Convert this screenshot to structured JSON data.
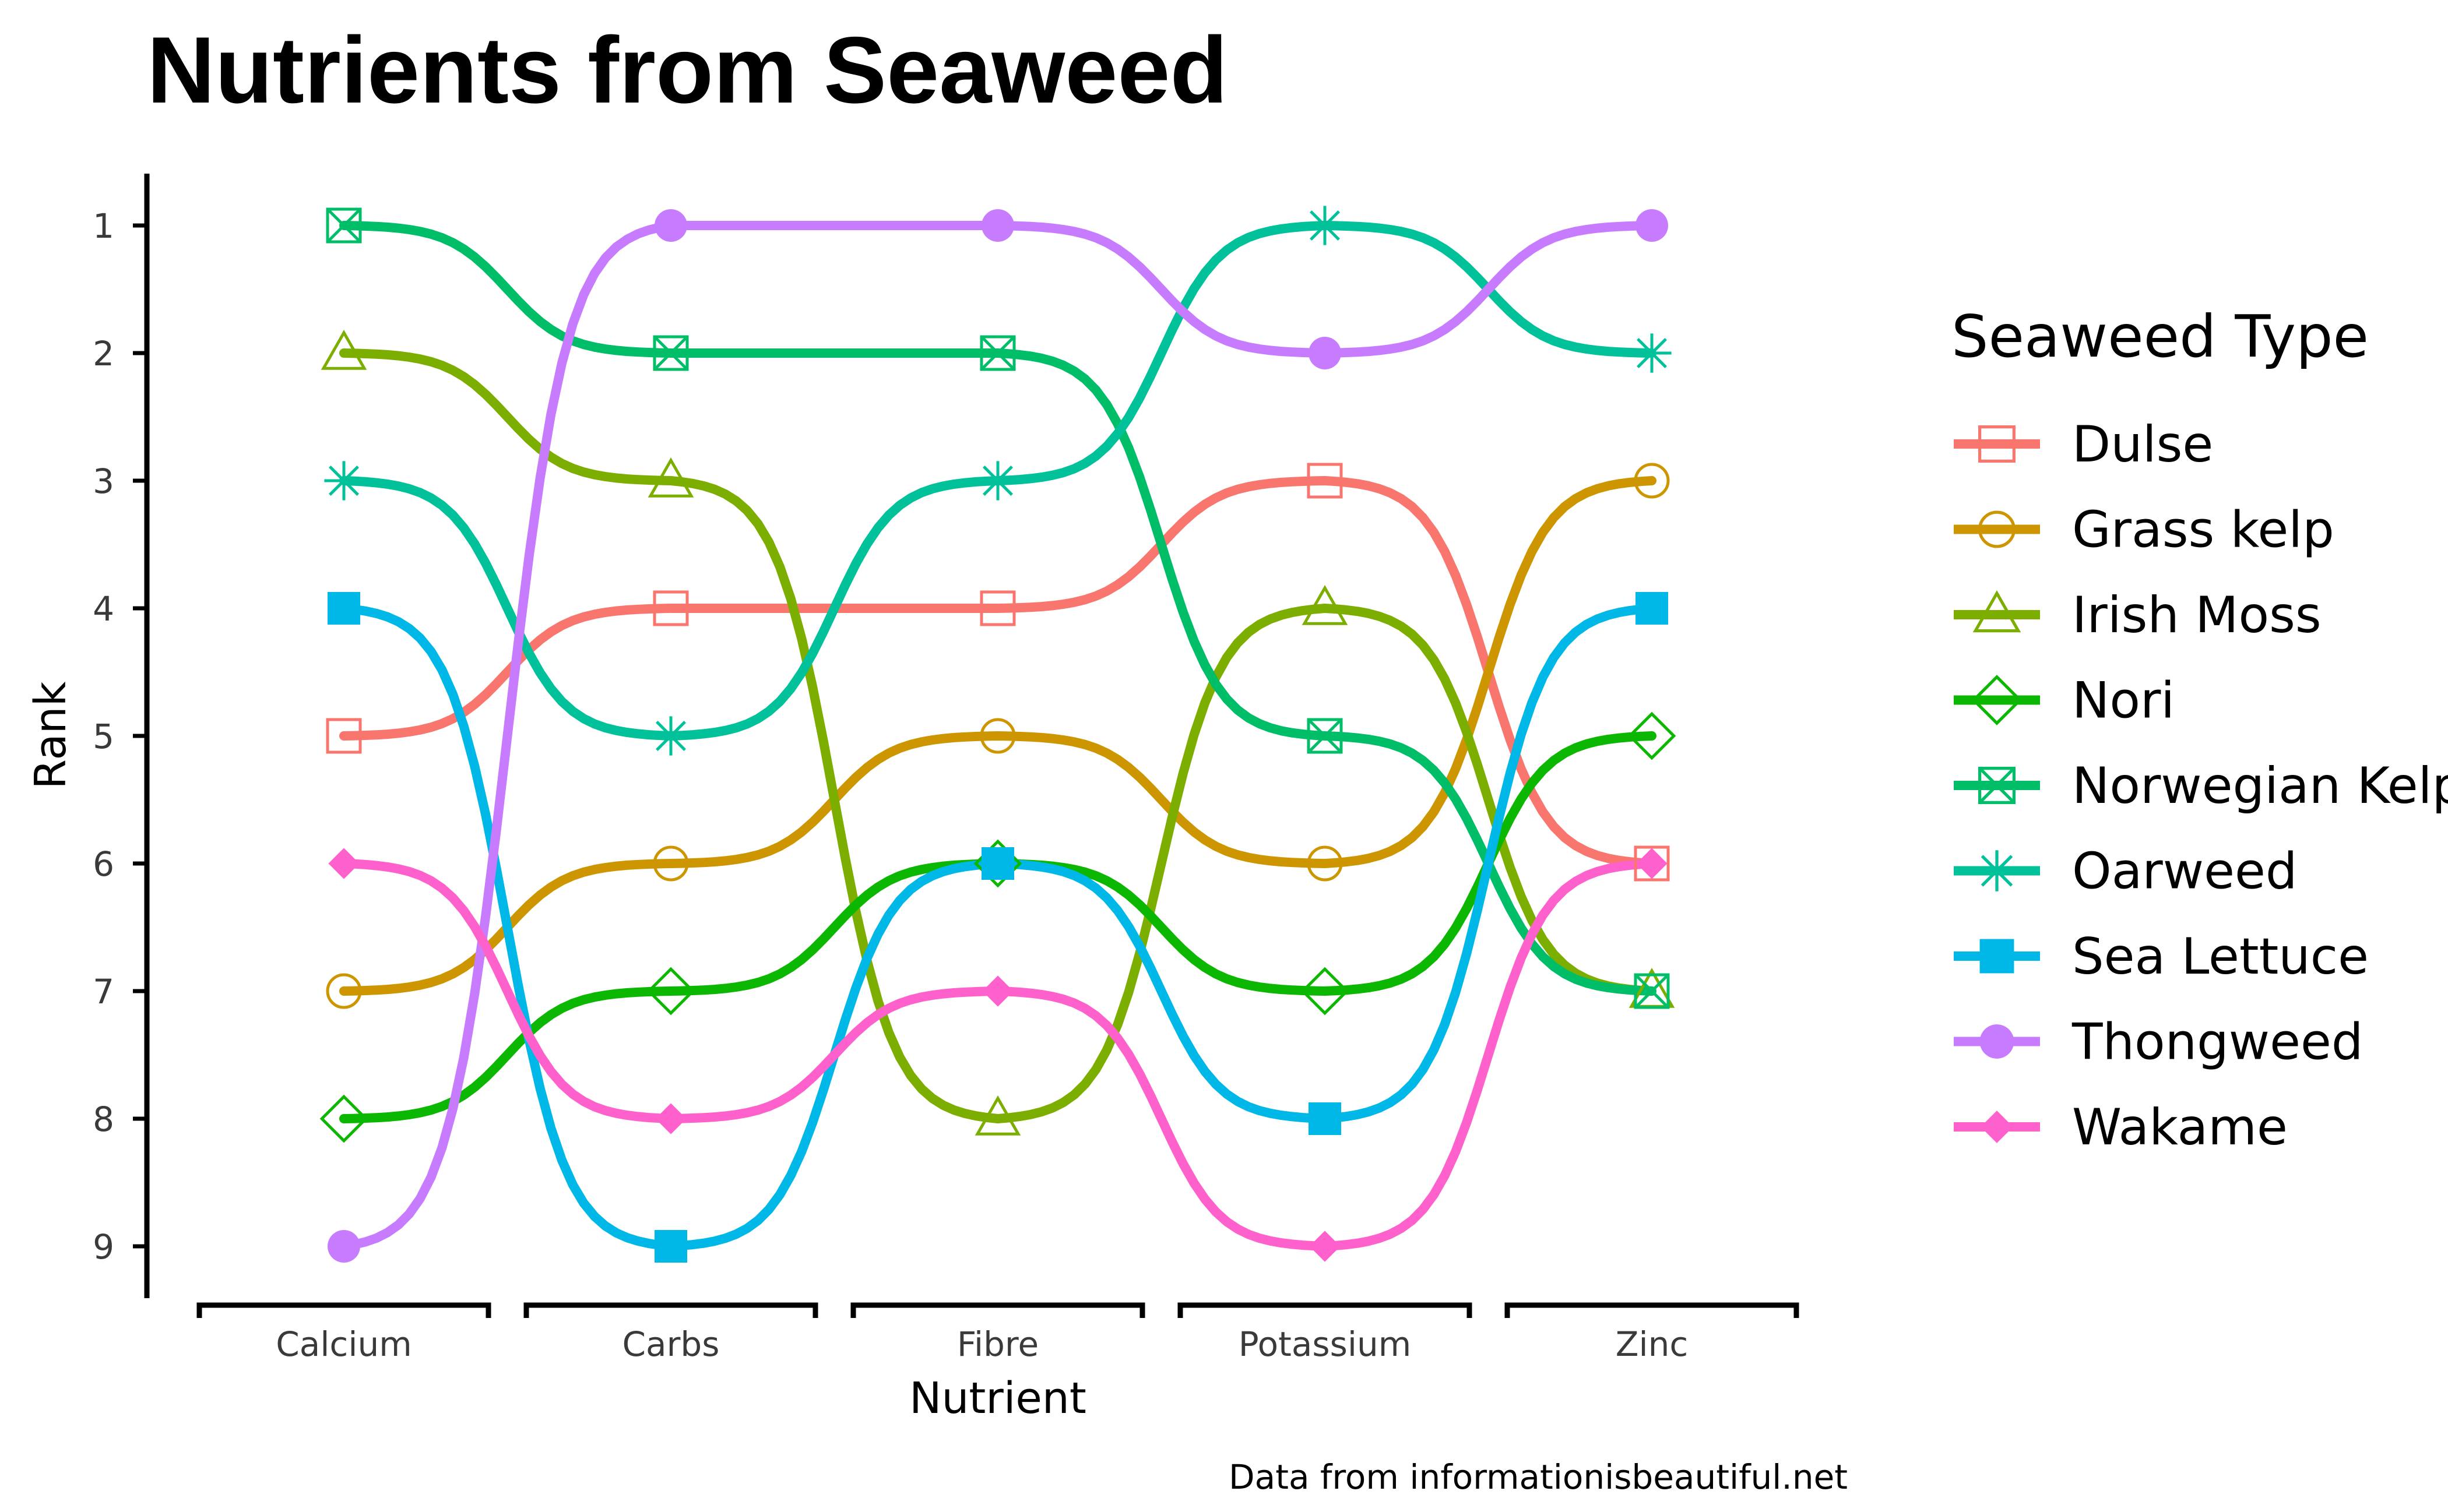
{
  "title": "Nutrients from Seaweed",
  "caption": "Data from informationisbeautiful.net",
  "chart_data": {
    "type": "line",
    "subtype": "bump chart (smoothed rank lines)",
    "xlabel": "Nutrient",
    "ylabel": "Rank",
    "categories": [
      "Calcium",
      "Carbs",
      "Fibre",
      "Potassium",
      "Zinc"
    ],
    "y_ticks": [
      1,
      2,
      3,
      4,
      5,
      6,
      7,
      8,
      9
    ],
    "y_reversed": true,
    "ylim": [
      1,
      9
    ],
    "grid": false,
    "legend": {
      "title": "Seaweed Type",
      "position": "right"
    },
    "series": [
      {
        "name": "Dulse",
        "color": "#F8766D",
        "shape": "square-open",
        "values": [
          5,
          4,
          4,
          3,
          6
        ]
      },
      {
        "name": "Grass kelp",
        "color": "#CD9600",
        "shape": "circle-open",
        "values": [
          7,
          6,
          5,
          6,
          3
        ]
      },
      {
        "name": "Irish Moss",
        "color": "#7CAE00",
        "shape": "triangle-open",
        "values": [
          2,
          3,
          8,
          4,
          7
        ]
      },
      {
        "name": "Nori",
        "color": "#0CB702",
        "shape": "diamond-open",
        "values": [
          8,
          7,
          6,
          7,
          5
        ]
      },
      {
        "name": "Norwegian Kelp",
        "color": "#00BE67",
        "shape": "square-cross",
        "values": [
          1,
          2,
          2,
          5,
          7
        ]
      },
      {
        "name": "Oarweed",
        "color": "#00C19A",
        "shape": "asterisk",
        "values": [
          3,
          5,
          3,
          1,
          2
        ]
      },
      {
        "name": "Sea Lettuce",
        "color": "#00B8E7",
        "shape": "square-filled",
        "values": [
          4,
          9,
          6,
          8,
          4
        ]
      },
      {
        "name": "Thongweed",
        "color": "#C77CFF",
        "shape": "circle-filled",
        "values": [
          9,
          1,
          1,
          2,
          1
        ]
      },
      {
        "name": "Wakame",
        "color": "#FF61CC",
        "shape": "diamond-filled",
        "values": [
          6,
          8,
          7,
          9,
          6
        ]
      }
    ]
  }
}
